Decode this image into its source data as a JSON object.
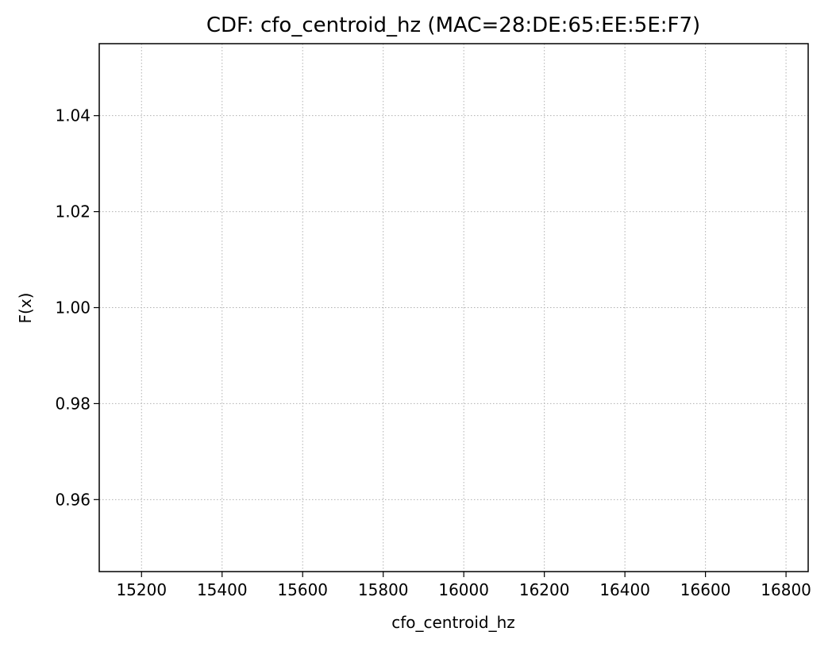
{
  "chart_data": {
    "type": "line",
    "title": "CDF: cfo_centroid_hz (MAC=28:DE:65:EE:5E:F7)",
    "xlabel": "cfo_centroid_hz",
    "ylabel": "F(x)",
    "xlim": [
      15095,
      16855
    ],
    "ylim": [
      0.945,
      1.055
    ],
    "xticks": [
      15200,
      15400,
      15600,
      15800,
      16000,
      16200,
      16400,
      16600,
      16800
    ],
    "xtick_labels": [
      "15200",
      "15400",
      "15600",
      "15800",
      "16000",
      "16200",
      "16400",
      "16600",
      "16800"
    ],
    "yticks": [
      0.96,
      0.98,
      1.0,
      1.02,
      1.04
    ],
    "ytick_labels": [
      "0.96",
      "0.98",
      "1.00",
      "1.02",
      "1.04"
    ],
    "grid": true,
    "series": []
  }
}
